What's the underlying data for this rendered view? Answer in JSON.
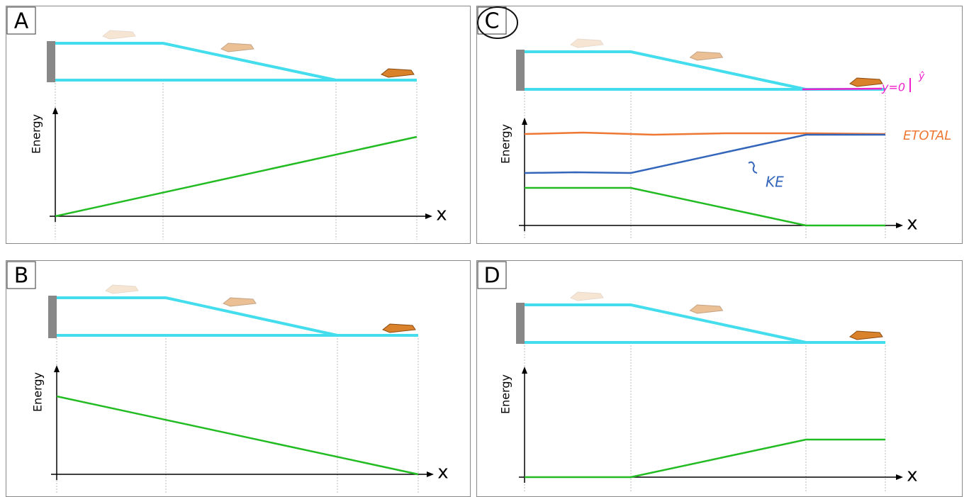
{
  "panels": [
    {
      "label": "A",
      "y_label": "Energy",
      "x_label": "x"
    },
    {
      "label": "B",
      "y_label": "Energy",
      "x_label": "x"
    },
    {
      "label": "C",
      "y_label": "Energy",
      "x_label": "x"
    },
    {
      "label": "D",
      "y_label": "Energy",
      "x_label": "x"
    }
  ],
  "annotations": {
    "ground": "y=0",
    "unit_vector": "ŷ",
    "total": "ETOTAL",
    "kinetic": "KE"
  }
}
